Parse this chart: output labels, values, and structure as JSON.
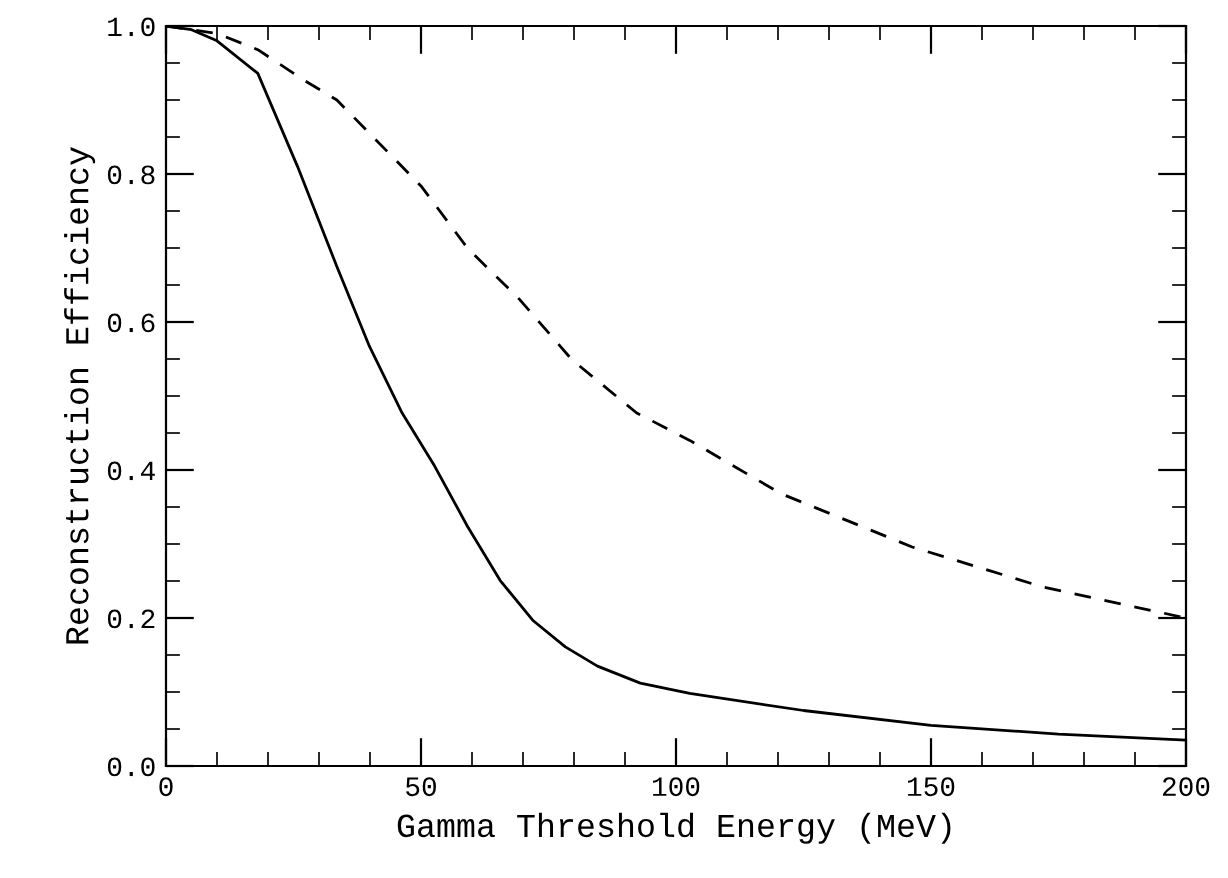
{
  "chart_data": {
    "type": "line",
    "xlabel": "Gamma Threshold Energy (MeV)",
    "ylabel": "Reconstruction Efficiency",
    "xlim": [
      0,
      200
    ],
    "ylim": [
      0,
      1.0
    ],
    "xticks": [
      0,
      50,
      100,
      150,
      200
    ],
    "yticks": [
      {
        "value": 0,
        "label": "0.0"
      },
      0.2,
      0.4,
      0.6,
      0.8,
      {
        "value": 1,
        "label": "1.0"
      }
    ],
    "grid": false,
    "legend": false,
    "marker": "none",
    "series": [
      {
        "color": "#000000",
        "line_style": "solid",
        "x": [
          0,
          5,
          10,
          18,
          25.8,
          33.5,
          39.9,
          46.3,
          52.7,
          59.1,
          65.5,
          71.9,
          78.3,
          84.6,
          93,
          102.7,
          125,
          150,
          175,
          200
        ],
        "values": [
          1.0,
          0.995,
          0.98,
          0.936,
          0.81,
          0.675,
          0.567,
          0.477,
          0.405,
          0.324,
          0.251,
          0.197,
          0.161,
          0.135,
          0.112,
          0.098,
          0.075,
          0.055,
          0.043,
          0.035
        ]
      },
      {
        "color": "#000000",
        "line_style": "dashed",
        "x": [
          0,
          10,
          18,
          27,
          33.5,
          39.9,
          50.1,
          59.1,
          69.4,
          79.6,
          92.3,
          102.7,
          120.6,
          146.3,
          171.9,
          200
        ],
        "values": [
          1.0,
          0.99,
          0.968,
          0.927,
          0.9,
          0.855,
          0.783,
          0.7,
          0.63,
          0.549,
          0.477,
          0.44,
          0.368,
          0.296,
          0.242,
          0.2
        ]
      }
    ]
  }
}
